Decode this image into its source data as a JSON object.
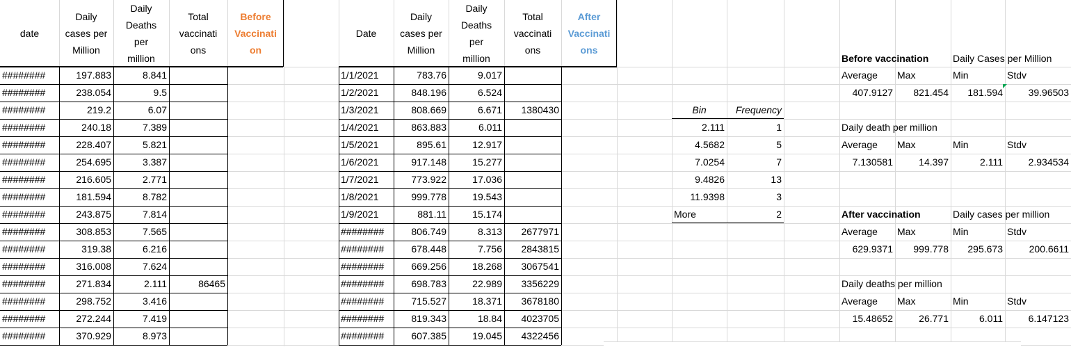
{
  "table1": {
    "headers": [
      "date",
      "Daily cases per Million",
      "Daily Deaths per million",
      "Total vaccinations",
      "Before Vaccination"
    ],
    "header_lines": {
      "date": [
        "date"
      ],
      "cases": [
        "Daily",
        "cases per",
        "Million"
      ],
      "deaths": [
        "Daily",
        "Deaths",
        "per",
        "million"
      ],
      "total": [
        "Total",
        "vaccinati",
        "ons"
      ],
      "label": [
        "Before",
        "Vaccinati",
        "on"
      ]
    },
    "rows": [
      [
        "########",
        "197.883",
        "8.841",
        ""
      ],
      [
        "########",
        "238.054",
        "9.5",
        ""
      ],
      [
        "########",
        "219.2",
        "6.07",
        ""
      ],
      [
        "########",
        "240.18",
        "7.389",
        ""
      ],
      [
        "########",
        "228.407",
        "5.821",
        ""
      ],
      [
        "########",
        "254.695",
        "3.387",
        ""
      ],
      [
        "########",
        "216.605",
        "2.771",
        ""
      ],
      [
        "########",
        "181.594",
        "8.782",
        ""
      ],
      [
        "########",
        "243.875",
        "7.814",
        ""
      ],
      [
        "########",
        "308.853",
        "7.565",
        ""
      ],
      [
        "########",
        "319.38",
        "6.216",
        ""
      ],
      [
        "########",
        "316.008",
        "7.624",
        ""
      ],
      [
        "########",
        "271.834",
        "2.111",
        "86465"
      ],
      [
        "########",
        "298.752",
        "3.416",
        ""
      ],
      [
        "########",
        "272.244",
        "7.419",
        ""
      ],
      [
        "########",
        "370.929",
        "8.973",
        ""
      ]
    ]
  },
  "table2": {
    "header_lines": {
      "date": [
        "Date"
      ],
      "cases": [
        "Daily",
        "cases per",
        "Million"
      ],
      "deaths": [
        "Daily",
        "Deaths",
        "per",
        "million"
      ],
      "total": [
        "Total",
        "vaccinati",
        "ons"
      ],
      "label": [
        "After",
        "Vaccinati",
        "ons"
      ]
    },
    "rows": [
      [
        "1/1/2021",
        "783.76",
        "9.017",
        ""
      ],
      [
        "1/2/2021",
        "848.196",
        "6.524",
        ""
      ],
      [
        "1/3/2021",
        "808.669",
        "6.671",
        "1380430"
      ],
      [
        "1/4/2021",
        "863.883",
        "6.011",
        ""
      ],
      [
        "1/5/2021",
        "895.61",
        "12.917",
        ""
      ],
      [
        "1/6/2021",
        "917.148",
        "15.277",
        ""
      ],
      [
        "1/7/2021",
        "773.922",
        "17.036",
        ""
      ],
      [
        "1/8/2021",
        "999.778",
        "19.543",
        ""
      ],
      [
        "1/9/2021",
        "881.11",
        "15.174",
        ""
      ],
      [
        "########",
        "806.749",
        "8.313",
        "2677971"
      ],
      [
        "########",
        "678.448",
        "7.756",
        "2843815"
      ],
      [
        "########",
        "669.256",
        "18.268",
        "3067541"
      ],
      [
        "########",
        "698.783",
        "22.989",
        "3356229"
      ],
      [
        "########",
        "715.527",
        "18.371",
        "3678180"
      ],
      [
        "########",
        "819.343",
        "18.84",
        "4023705"
      ],
      [
        "########",
        "607.385",
        "19.045",
        "4322456"
      ]
    ]
  },
  "histogram": {
    "headers": [
      "Bin",
      "Frequency"
    ],
    "rows": [
      [
        "2.111",
        "1"
      ],
      [
        "4.5682",
        "5"
      ],
      [
        "7.0254",
        "7"
      ],
      [
        "9.4826",
        "13"
      ],
      [
        "11.9398",
        "3"
      ],
      [
        "More",
        "2"
      ]
    ]
  },
  "stats": {
    "before_title": "Before vaccination",
    "before_cases_label": "Daily Cases per Million",
    "before_cases_cols": [
      "Average",
      "Max",
      "Min",
      "Stdv"
    ],
    "before_cases_vals": [
      "407.9127",
      "821.454",
      "181.594",
      "39.96503"
    ],
    "before_deaths_label": "Daily death per million",
    "before_deaths_cols": [
      "Average",
      "Max",
      "Min",
      "Stdv"
    ],
    "before_deaths_vals": [
      "7.130581",
      "14.397",
      "2.111",
      "2.934534"
    ],
    "after_title": "After vaccination",
    "after_cases_label": "Daily cases per million",
    "after_cases_cols": [
      "Average",
      "Max",
      "Min",
      "Stdv"
    ],
    "after_cases_vals": [
      "629.9371",
      "999.778",
      "295.673",
      "200.6611"
    ],
    "after_deaths_label": "Daily deaths per million",
    "after_deaths_cols": [
      "Average",
      "Max",
      "Min",
      "Stdv"
    ],
    "after_deaths_vals": [
      "15.48652",
      "26.771",
      "6.011",
      "6.147123"
    ]
  },
  "colors": {
    "before_label": "#ed7d31",
    "after_label": "#5b9bd5",
    "gridline": "#d9d9d9",
    "border": "#000000"
  }
}
